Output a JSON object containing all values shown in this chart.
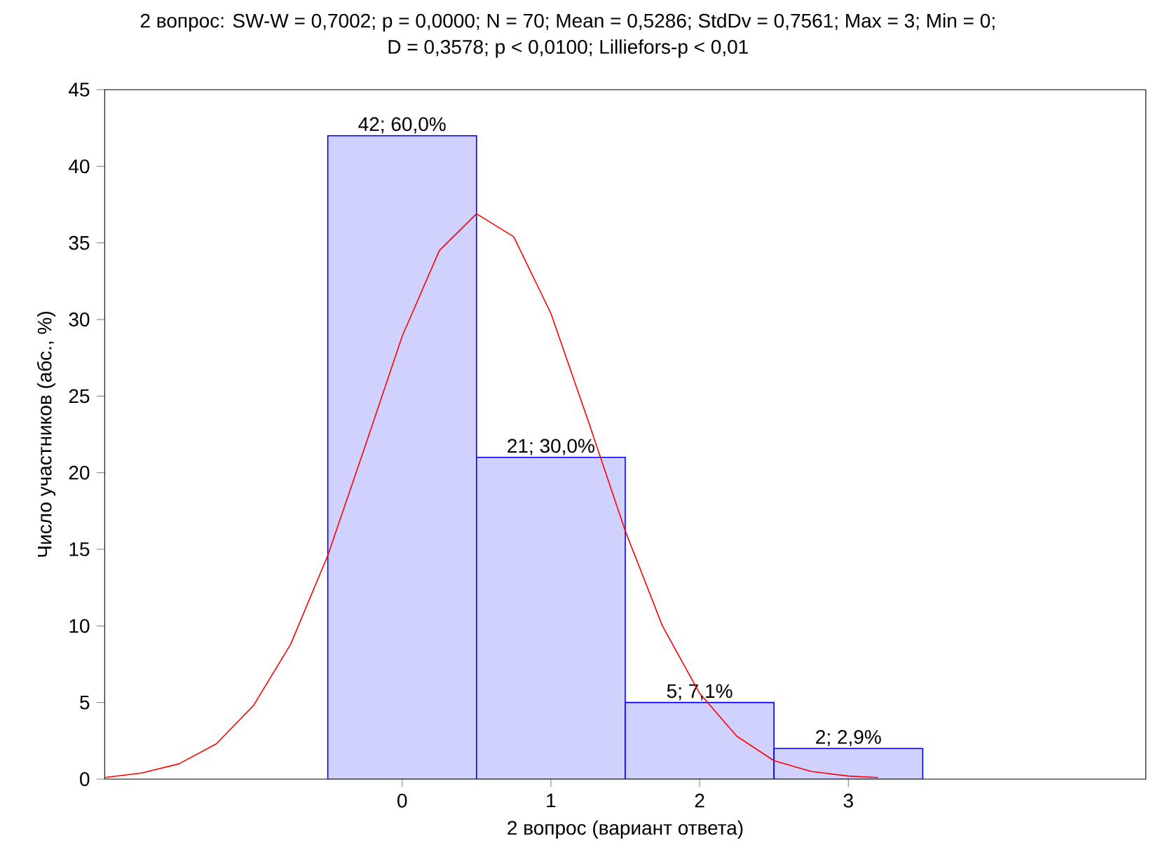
{
  "chart_data": {
    "type": "histogram",
    "title": "2 вопрос:   SW-W = 0,7002; p = 0,0000;  N = 70; Mean = 0,5286; StdDv = 0,7561; Max = 3; Min = 0;",
    "subtitle": "D = 0,3578; p < 0,0100; Lilliefors-p < 0,01",
    "xlabel": "2 вопрос (вариант ответа)",
    "ylabel": "Число участников (абс., %)",
    "bins": [
      -0.5,
      0.5,
      1.5,
      2.5,
      3.5
    ],
    "values": [
      42,
      21,
      5,
      2
    ],
    "color": "#0000ff",
    "value_labels": [
      "42; 60,0%",
      "21; 30,0%",
      "5; 7,1%",
      "2; 2,9%"
    ],
    "series": [
      {
        "type": "line",
        "color": "#ff0000",
        "x": [
          -2,
          -1.75,
          -1.5,
          -1.25,
          -1,
          -0.75,
          -0.5,
          -0.25,
          0,
          0.25,
          0.5,
          0.75,
          1,
          1.25,
          1.5,
          1.75,
          2,
          2.25,
          2.5,
          2.75,
          3,
          3.2
        ],
        "values": [
          0.1,
          0.4,
          1.0,
          2.3,
          4.8,
          8.8,
          14.6,
          21.7,
          28.9,
          34.5,
          36.9,
          35.4,
          30.4,
          23.4,
          16.2,
          10.0,
          5.6,
          2.8,
          1.2,
          0.5,
          0.2,
          0.1
        ]
      }
    ],
    "xlim": [
      -2,
      5
    ],
    "ylim": [
      0,
      45
    ],
    "xticks": [
      0,
      1,
      2,
      3
    ],
    "yticks": [
      0,
      5,
      10,
      15,
      20,
      25,
      30,
      35,
      40,
      45
    ],
    "grid": false
  }
}
